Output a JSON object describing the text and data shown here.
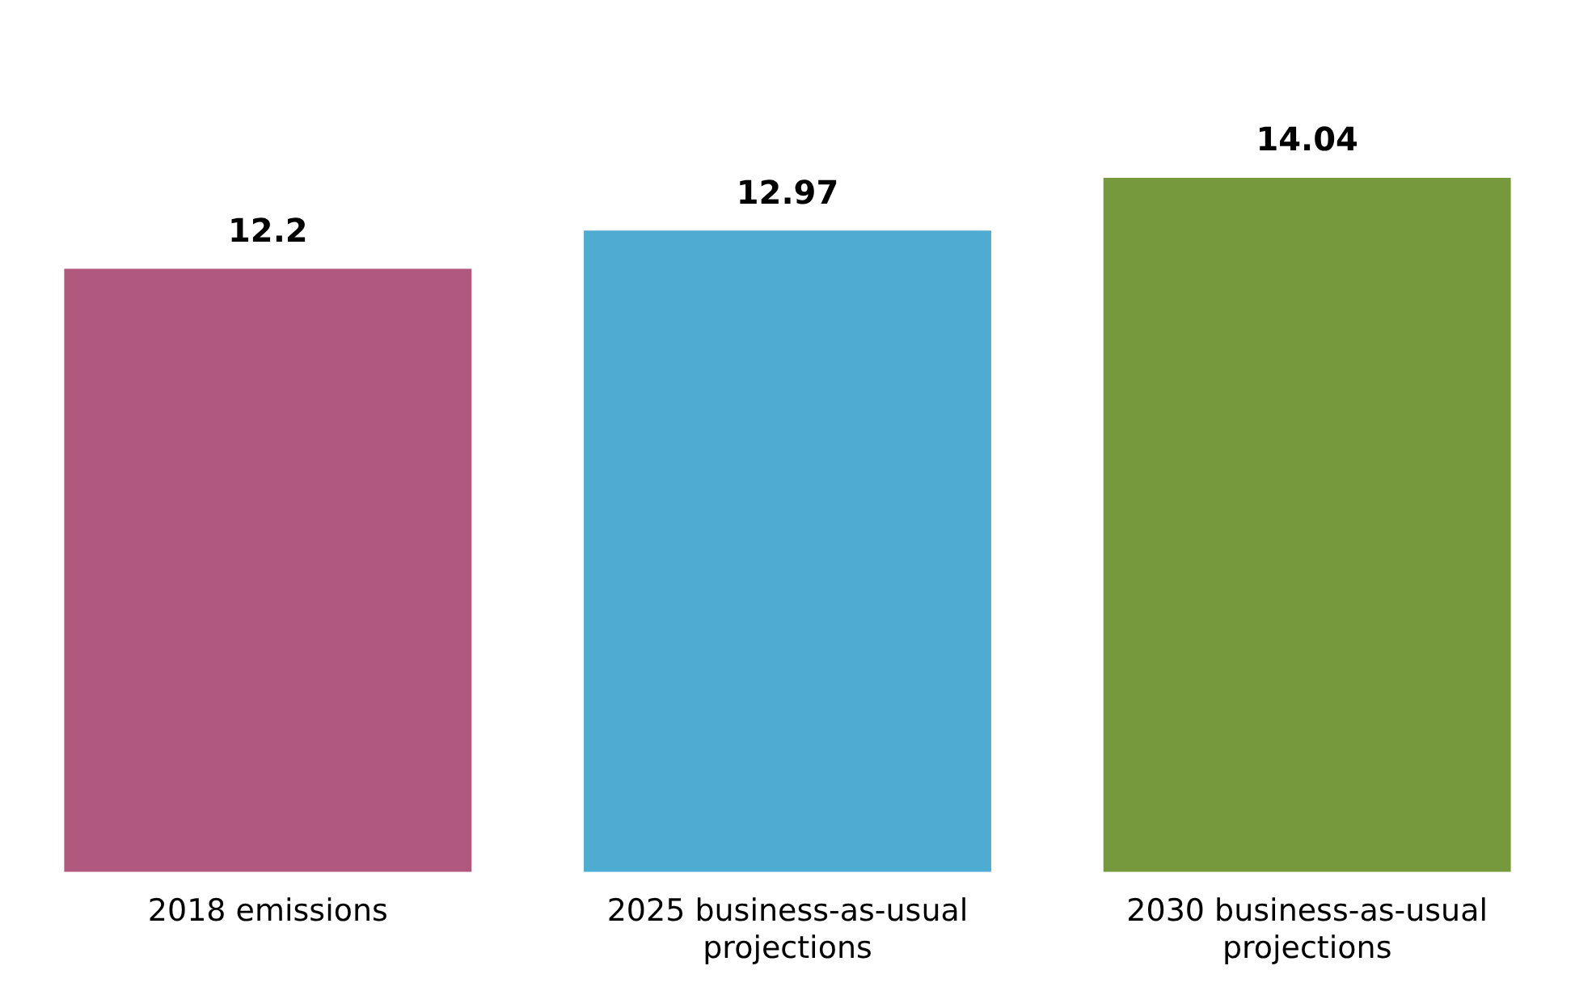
{
  "chart_data": {
    "type": "bar",
    "categories": [
      "2018 emissions",
      "2025 business-as-usual projections",
      "2030 business-as-usual projections"
    ],
    "values": [
      12.2,
      12.97,
      14.04
    ],
    "colors": [
      "#b0587e",
      "#4eabd1",
      "#76993e"
    ],
    "data_labels": true,
    "grid": false,
    "legend": false
  }
}
